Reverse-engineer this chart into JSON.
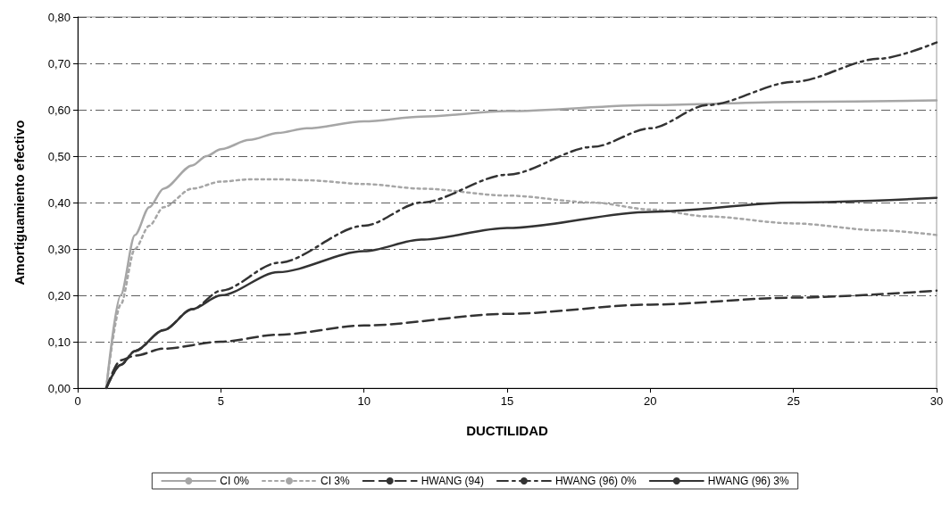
{
  "chart_data": {
    "type": "line",
    "xlabel": "DUCTILIDAD",
    "ylabel": "Amortiguamiento efectivo",
    "xlim": [
      0,
      30
    ],
    "xticks": [
      0,
      5,
      10,
      15,
      20,
      25,
      30
    ],
    "ylim": [
      0,
      0.8
    ],
    "yticks": [
      {
        "value": 0,
        "label": "0,00"
      },
      {
        "value": 0.1,
        "label": "0,10"
      },
      {
        "value": 0.2,
        "label": "0,20"
      },
      {
        "value": 0.3,
        "label": "0,30"
      },
      {
        "value": 0.4,
        "label": "0,40"
      },
      {
        "value": 0.5,
        "label": "0,50"
      },
      {
        "value": 0.6,
        "label": "0,60"
      },
      {
        "value": 0.7,
        "label": "0,70"
      },
      {
        "value": 0.8,
        "label": "0,80"
      }
    ],
    "grid": "y",
    "legend": "bottom",
    "marker": "none",
    "series": [
      {
        "name": "CI 0%",
        "color": "#a6a6a6",
        "line_style": "solid",
        "x": [
          1,
          1.5,
          2,
          2.5,
          3,
          4,
          4.5,
          5,
          6,
          7,
          8,
          10,
          12,
          15,
          20,
          25,
          30
        ],
        "values": [
          0,
          0.2,
          0.33,
          0.39,
          0.43,
          0.48,
          0.5,
          0.515,
          0.535,
          0.55,
          0.56,
          0.575,
          0.585,
          0.597,
          0.61,
          0.617,
          0.62
        ]
      },
      {
        "name": "CI 3%",
        "color": "#a6a6a6",
        "line_style": "dotted",
        "x": [
          1,
          1.5,
          2,
          2.5,
          3,
          4,
          5,
          6,
          7,
          8,
          10,
          12,
          15,
          18,
          20,
          22,
          25,
          28,
          30
        ],
        "values": [
          0,
          0.18,
          0.3,
          0.35,
          0.39,
          0.43,
          0.445,
          0.45,
          0.45,
          0.448,
          0.44,
          0.43,
          0.415,
          0.4,
          0.385,
          0.37,
          0.355,
          0.34,
          0.33
        ]
      },
      {
        "name": "HWANG (94)",
        "color": "#333333",
        "line_style": "dashed",
        "x": [
          1,
          1.5,
          2,
          3,
          5,
          7,
          10,
          15,
          20,
          25,
          30
        ],
        "values": [
          0,
          0.06,
          0.07,
          0.085,
          0.1,
          0.115,
          0.135,
          0.16,
          0.18,
          0.195,
          0.21
        ]
      },
      {
        "name": "HWANG (96) 0%",
        "color": "#333333",
        "line_style": "dashdot",
        "x": [
          1,
          1.5,
          2,
          3,
          4,
          5,
          7,
          10,
          12,
          15,
          18,
          20,
          22,
          25,
          28,
          30
        ],
        "values": [
          0,
          0.05,
          0.08,
          0.125,
          0.17,
          0.21,
          0.27,
          0.35,
          0.4,
          0.46,
          0.52,
          0.56,
          0.61,
          0.66,
          0.71,
          0.745
        ]
      },
      {
        "name": "HWANG (96) 3%",
        "color": "#333333",
        "line_style": "solid",
        "x": [
          1,
          1.5,
          2,
          3,
          4,
          5,
          7,
          10,
          12,
          15,
          20,
          25,
          30
        ],
        "values": [
          0,
          0.05,
          0.08,
          0.125,
          0.17,
          0.2,
          0.25,
          0.295,
          0.32,
          0.345,
          0.38,
          0.4,
          0.41
        ]
      }
    ]
  }
}
